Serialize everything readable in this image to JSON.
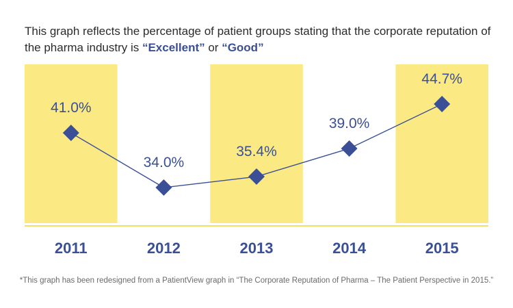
{
  "title": {
    "part1": "This graph reflects the percentage of patient groups stating that the corporate reputation of the pharma industry is ",
    "excellent": "“Excellent”",
    "or": " or ",
    "good": "“Good”"
  },
  "footnote": "*This graph has been redesigned from a PatientView graph in “The Corporate Reputation of Pharma – The Patient Perspective in 2015.”",
  "colors": {
    "accent": "#3a4f96",
    "band": "#fbea84",
    "axis": "#f2df6a"
  },
  "chart_data": {
    "type": "line",
    "title": "This graph reflects the percentage of patient groups stating that the corporate reputation of the pharma industry is “Excellent” or “Good”",
    "xlabel": "",
    "ylabel": "",
    "categories": [
      "2011",
      "2012",
      "2013",
      "2014",
      "2015"
    ],
    "series": [
      {
        "values": [
          41.0,
          34.0,
          35.4,
          39.0,
          44.7
        ],
        "labels": [
          "41.0%",
          "34.0%",
          "35.4%",
          "39.0%",
          "44.7%"
        ]
      }
    ],
    "highlighted_categories": [
      "2011",
      "2013",
      "2015"
    ],
    "grid": false,
    "legend": "none"
  }
}
